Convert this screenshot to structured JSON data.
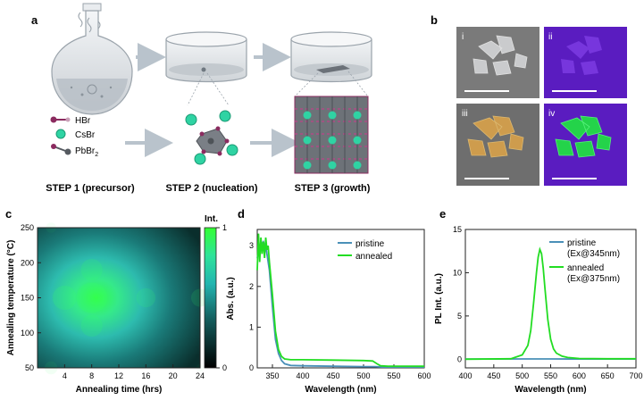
{
  "panels": {
    "a": {
      "label": "a",
      "legend": [
        {
          "label": "HBr"
        },
        {
          "label": "CsBr"
        },
        {
          "label": "PbBr",
          "sub": "2"
        }
      ],
      "steps": [
        "STEP 1 (precursor)",
        "STEP 2 (nucleation)",
        "STEP 3 (growth)"
      ]
    },
    "b": {
      "label": "b",
      "subpanels": [
        "i",
        "ii",
        "iii",
        "iv"
      ]
    },
    "c": {
      "label": "c",
      "colorbar_label": "Int."
    },
    "d": {
      "label": "d"
    },
    "e": {
      "label": "e"
    }
  },
  "colors": {
    "pristine": "#4a90b8",
    "annealed": "#22dd22",
    "glass": "#dfe3e6",
    "violet": "#6b1fd0"
  },
  "chart_data": [
    {
      "id": "c",
      "type": "heatmap",
      "xlabel": "Annealing time (hrs)",
      "ylabel": "Annealing temperature (°C)",
      "xlim": [
        0,
        24
      ],
      "ylim": [
        50,
        250
      ],
      "xticks": [
        4,
        8,
        12,
        16,
        20,
        24
      ],
      "yticks": [
        50,
        100,
        150,
        200,
        250
      ],
      "colorbar": {
        "label": "Int.",
        "range": [
          0,
          1
        ],
        "ticks": [
          0,
          1
        ]
      },
      "points": [
        {
          "x": 8,
          "y": 150,
          "value": 1.0
        },
        {
          "x": 4,
          "y": 150,
          "value": 0.75
        },
        {
          "x": 8,
          "y": 190,
          "value": 0.65
        },
        {
          "x": 8,
          "y": 110,
          "value": 0.65
        },
        {
          "x": 16,
          "y": 150,
          "value": 0.55
        },
        {
          "x": 24,
          "y": 150,
          "value": 0.5
        },
        {
          "x": 2,
          "y": 250,
          "value": 0.2
        },
        {
          "x": 24,
          "y": 250,
          "value": 0.05
        },
        {
          "x": 24,
          "y": 50,
          "value": 0.1
        },
        {
          "x": 2,
          "y": 50,
          "value": 0.3
        }
      ]
    },
    {
      "id": "d",
      "type": "line",
      "xlabel": "Wavelength (nm)",
      "ylabel": "Abs. (a.u.)",
      "xlim": [
        325,
        600
      ],
      "ylim": [
        0,
        3.4
      ],
      "xticks": [
        350,
        400,
        450,
        500,
        550,
        600
      ],
      "yticks": [
        0,
        1,
        2,
        3
      ],
      "legend_position": "top-right",
      "series": [
        {
          "name": "pristine",
          "color": "#4a90b8",
          "x": [
            325,
            330,
            335,
            340,
            345,
            350,
            355,
            360,
            365,
            370,
            380,
            400,
            450,
            500,
            520,
            530,
            550,
            600
          ],
          "y": [
            2.7,
            3.0,
            3.1,
            2.9,
            2.4,
            1.5,
            0.7,
            0.35,
            0.18,
            0.1,
            0.06,
            0.05,
            0.04,
            0.03,
            0.03,
            0.02,
            0.02,
            0.02
          ]
        },
        {
          "name": "annealed",
          "color": "#22dd22",
          "x": [
            325,
            327,
            329,
            331,
            333,
            335,
            337,
            339,
            341,
            343,
            345,
            350,
            355,
            360,
            365,
            370,
            380,
            400,
            450,
            500,
            515,
            522,
            528,
            540,
            560,
            600
          ],
          "y": [
            2.4,
            3.3,
            2.6,
            3.2,
            2.8,
            3.1,
            2.7,
            3.2,
            2.9,
            3.0,
            2.6,
            1.8,
            0.9,
            0.45,
            0.28,
            0.22,
            0.2,
            0.2,
            0.19,
            0.18,
            0.17,
            0.1,
            0.05,
            0.04,
            0.04,
            0.04
          ]
        }
      ]
    },
    {
      "id": "e",
      "type": "line",
      "xlabel": "Wavelength (nm)",
      "ylabel": "PL Int. (a.u.)",
      "xlim": [
        400,
        700
      ],
      "ylim": [
        -1,
        15
      ],
      "xticks": [
        400,
        450,
        500,
        550,
        600,
        650,
        700
      ],
      "yticks": [
        0,
        5,
        10,
        15
      ],
      "legend_position": "top-right",
      "series": [
        {
          "name": "pristine (Ex@345nm)",
          "legend_lines": [
            "pristine",
            "(Ex@345nm)"
          ],
          "color": "#4a90b8",
          "x": [
            400,
            450,
            500,
            550,
            600,
            650,
            700
          ],
          "y": [
            0.02,
            0.02,
            0.03,
            0.03,
            0.02,
            0.02,
            0.02
          ]
        },
        {
          "name": "annealed (Ex@375nm)",
          "legend_lines": [
            "annealed",
            "(Ex@375nm)"
          ],
          "color": "#22dd22",
          "x": [
            400,
            480,
            500,
            510,
            515,
            520,
            525,
            528,
            531,
            534,
            537,
            540,
            545,
            550,
            555,
            560,
            570,
            580,
            600,
            650,
            700
          ],
          "y": [
            0,
            0.05,
            0.5,
            1.6,
            3.3,
            6.5,
            10.0,
            11.8,
            12.7,
            12.2,
            10.5,
            8.2,
            4.6,
            2.3,
            1.2,
            0.7,
            0.35,
            0.2,
            0.08,
            0.05,
            0.05
          ]
        }
      ]
    }
  ]
}
